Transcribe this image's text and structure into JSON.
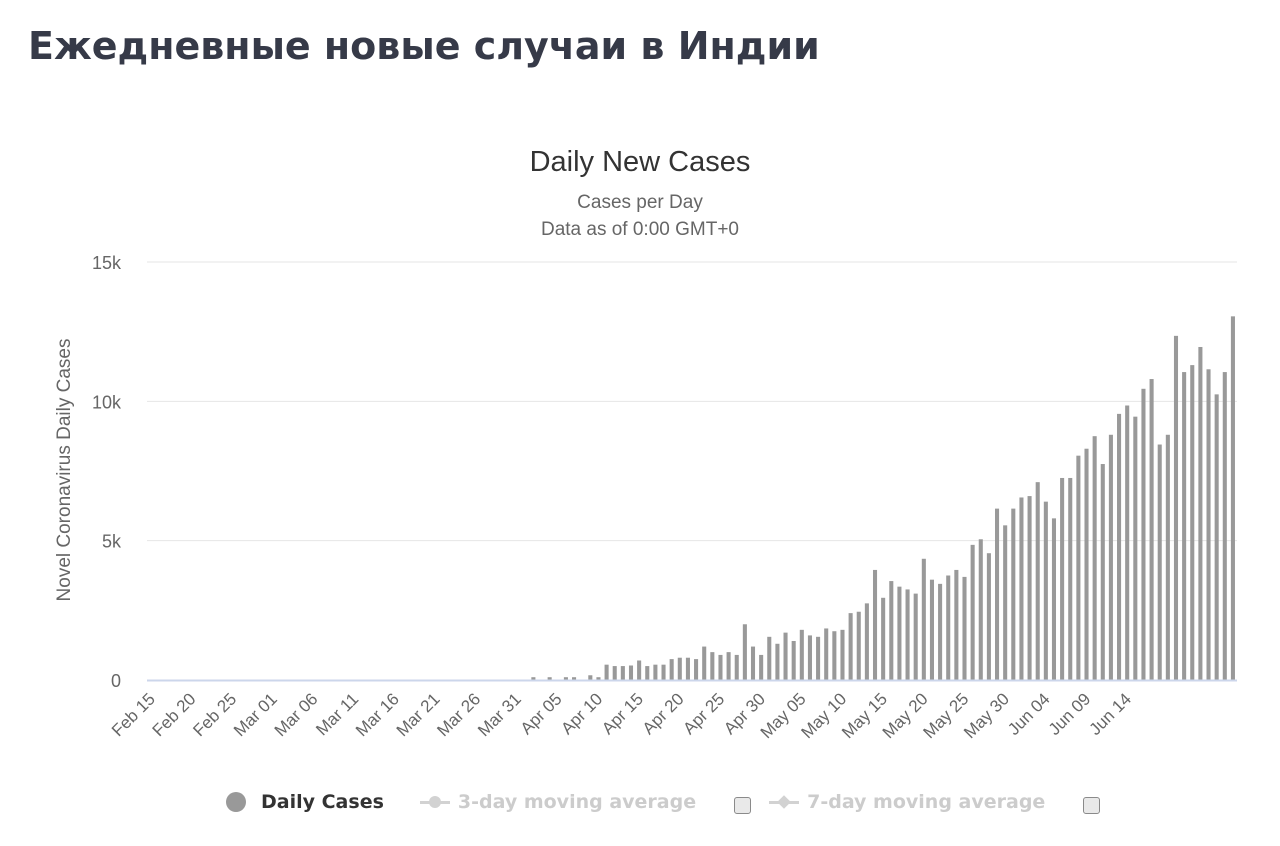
{
  "page": {
    "title": "Ежедневные новые случаи в Индии"
  },
  "chart_data": {
    "type": "bar",
    "title": "Daily New Cases",
    "subtitle_lines": [
      "Cases per Day",
      "Data as of 0:00 GMT+0"
    ],
    "ylabel": "Novel Coronavirus Daily Cases",
    "xlabel": "",
    "ylim": [
      0,
      15000
    ],
    "yticks": [
      0,
      5000,
      10000,
      15000
    ],
    "ytick_labels": [
      "0",
      "5k",
      "10k",
      "15k"
    ],
    "grid": true,
    "x_start": "Feb 15",
    "x_tick_labels": [
      "Feb 15",
      "Feb 20",
      "Feb 25",
      "Mar 01",
      "Mar 06",
      "Mar 11",
      "Mar 16",
      "Mar 21",
      "Mar 26",
      "Mar 31",
      "Apr 05",
      "Apr 10",
      "Apr 15",
      "Apr 20",
      "Apr 25",
      "Apr 30",
      "May 05",
      "May 10",
      "May 15",
      "May 20",
      "May 25",
      "May 30",
      "Jun 04",
      "Jun 09",
      "Jun 14"
    ],
    "bar_color": "#999999",
    "grid_color": "#e6e6e6",
    "axis_color": "#ccd6eb",
    "series": [
      {
        "name": "Daily Cases",
        "values": [
          0,
          0,
          0,
          0,
          0,
          0,
          0,
          0,
          0,
          0,
          0,
          0,
          0,
          0,
          0,
          0,
          0,
          0,
          0,
          0,
          0,
          0,
          0,
          0,
          0,
          0,
          0,
          0,
          0,
          0,
          0,
          0,
          0,
          0,
          0,
          0,
          0,
          0,
          0,
          0,
          0,
          0,
          0,
          0,
          0,
          0,
          0,
          100,
          0,
          100,
          0,
          100,
          100,
          0,
          170,
          100,
          550,
          500,
          500,
          520,
          700,
          500,
          550,
          550,
          750,
          800,
          800,
          750,
          1200,
          1000,
          900,
          1000,
          900,
          2000,
          1200,
          900,
          1550,
          1300,
          1700,
          1400,
          1800,
          1600,
          1550,
          1850,
          1750,
          1800,
          2400,
          2450,
          2750,
          3950,
          2950,
          3550,
          3350,
          3250,
          3100,
          4350,
          3600,
          3450,
          3750,
          3950,
          3700,
          4850,
          5050,
          4550,
          6150,
          5550,
          6150,
          6550,
          6600,
          7100,
          6400,
          5800,
          7250,
          7250,
          8050,
          8300,
          8750,
          7750,
          8800,
          9550,
          9850,
          9450,
          10450,
          10800,
          8450,
          8800,
          12350,
          11050,
          11300,
          11950,
          11150,
          10250,
          11050,
          13050
        ]
      }
    ],
    "legend": {
      "placement": "bottom-center",
      "items": [
        {
          "label": "Daily Cases",
          "color": "#999999",
          "enabled": true
        },
        {
          "label": "3-day moving average",
          "color": "#d2d2d2",
          "enabled": false
        },
        {
          "label": "7-day moving average",
          "color": "#d2d2d2",
          "enabled": false
        }
      ]
    }
  }
}
